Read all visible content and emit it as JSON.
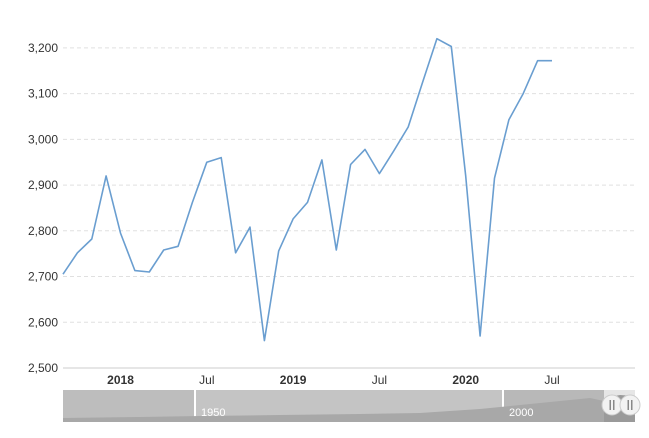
{
  "chart_data": {
    "type": "line",
    "title": "",
    "xlabel": "",
    "ylabel": "",
    "ylim": [
      2500,
      3250
    ],
    "yticks": [
      2500,
      2600,
      2700,
      2800,
      2900,
      3000,
      3100,
      3200
    ],
    "ytick_labels": [
      "2,500",
      "2,600",
      "2,700",
      "2,800",
      "2,900",
      "3,000",
      "3,100",
      "3,200"
    ],
    "x_ticks": [
      {
        "label": "2018",
        "date": "2018-01",
        "major": true
      },
      {
        "label": "Jul",
        "date": "2018-07",
        "major": false
      },
      {
        "label": "2019",
        "date": "2019-01",
        "major": true
      },
      {
        "label": "Jul",
        "date": "2019-07",
        "major": false
      },
      {
        "label": "2020",
        "date": "2020-01",
        "major": true
      },
      {
        "label": "Jul",
        "date": "2020-07",
        "major": false
      }
    ],
    "grid": true,
    "line_color": "#6a9ed0",
    "series": [
      {
        "x": [
          "2017-09",
          "2017-10",
          "2017-11",
          "2017-12",
          "2018-01",
          "2018-02",
          "2018-03",
          "2018-04",
          "2018-05",
          "2018-06",
          "2018-07",
          "2018-08",
          "2018-09",
          "2018-10",
          "2018-11",
          "2018-12",
          "2019-01",
          "2019-02",
          "2019-03",
          "2019-04",
          "2019-05",
          "2019-06",
          "2019-07",
          "2019-08",
          "2019-09",
          "2019-10",
          "2019-11",
          "2019-12",
          "2020-01",
          "2020-02",
          "2020-03",
          "2020-04",
          "2020-05",
          "2020-06",
          "2020-07"
        ],
        "values": [
          2705,
          2752,
          2782,
          2920,
          2795,
          2713,
          2710,
          2758,
          2766,
          2862,
          2950,
          2960,
          2752,
          2808,
          2560,
          2756,
          2826,
          2862,
          2955,
          2758,
          2945,
          2978,
          2925,
          2975,
          3027,
          3125,
          3220,
          3203,
          2920,
          2570,
          2915,
          3043,
          3100,
          3172,
          3172
        ]
      }
    ]
  },
  "navigator": {
    "labels": [
      "1950",
      "2000"
    ]
  }
}
